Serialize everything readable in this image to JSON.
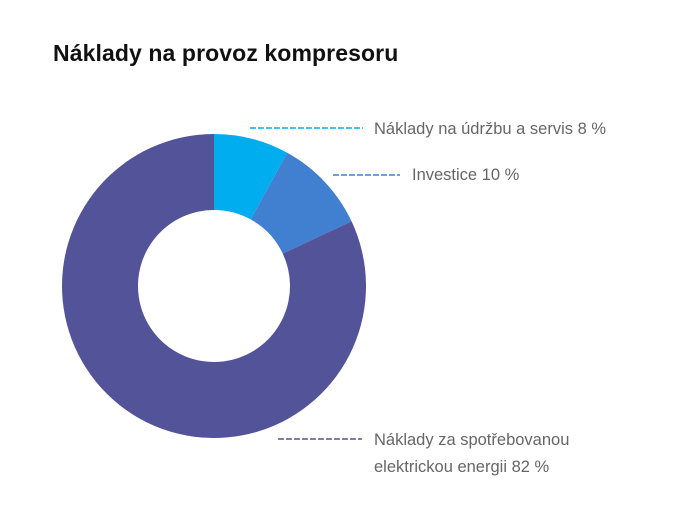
{
  "chart_data": {
    "type": "pie",
    "variant": "donut",
    "title": "Náklady na provoz kompresoru",
    "slices": [
      {
        "label_lines": [
          "Náklady na údržbu a servis 8 %"
        ],
        "value": 8,
        "color": "#00AEEF"
      },
      {
        "label_lines": [
          "Investice 10 %"
        ],
        "value": 10,
        "color": "#4180D0"
      },
      {
        "label_lines": [
          "Náklady za spotřebovanou",
          "elektrickou energii 82 %"
        ],
        "value": 82,
        "color": "#535399"
      }
    ]
  }
}
